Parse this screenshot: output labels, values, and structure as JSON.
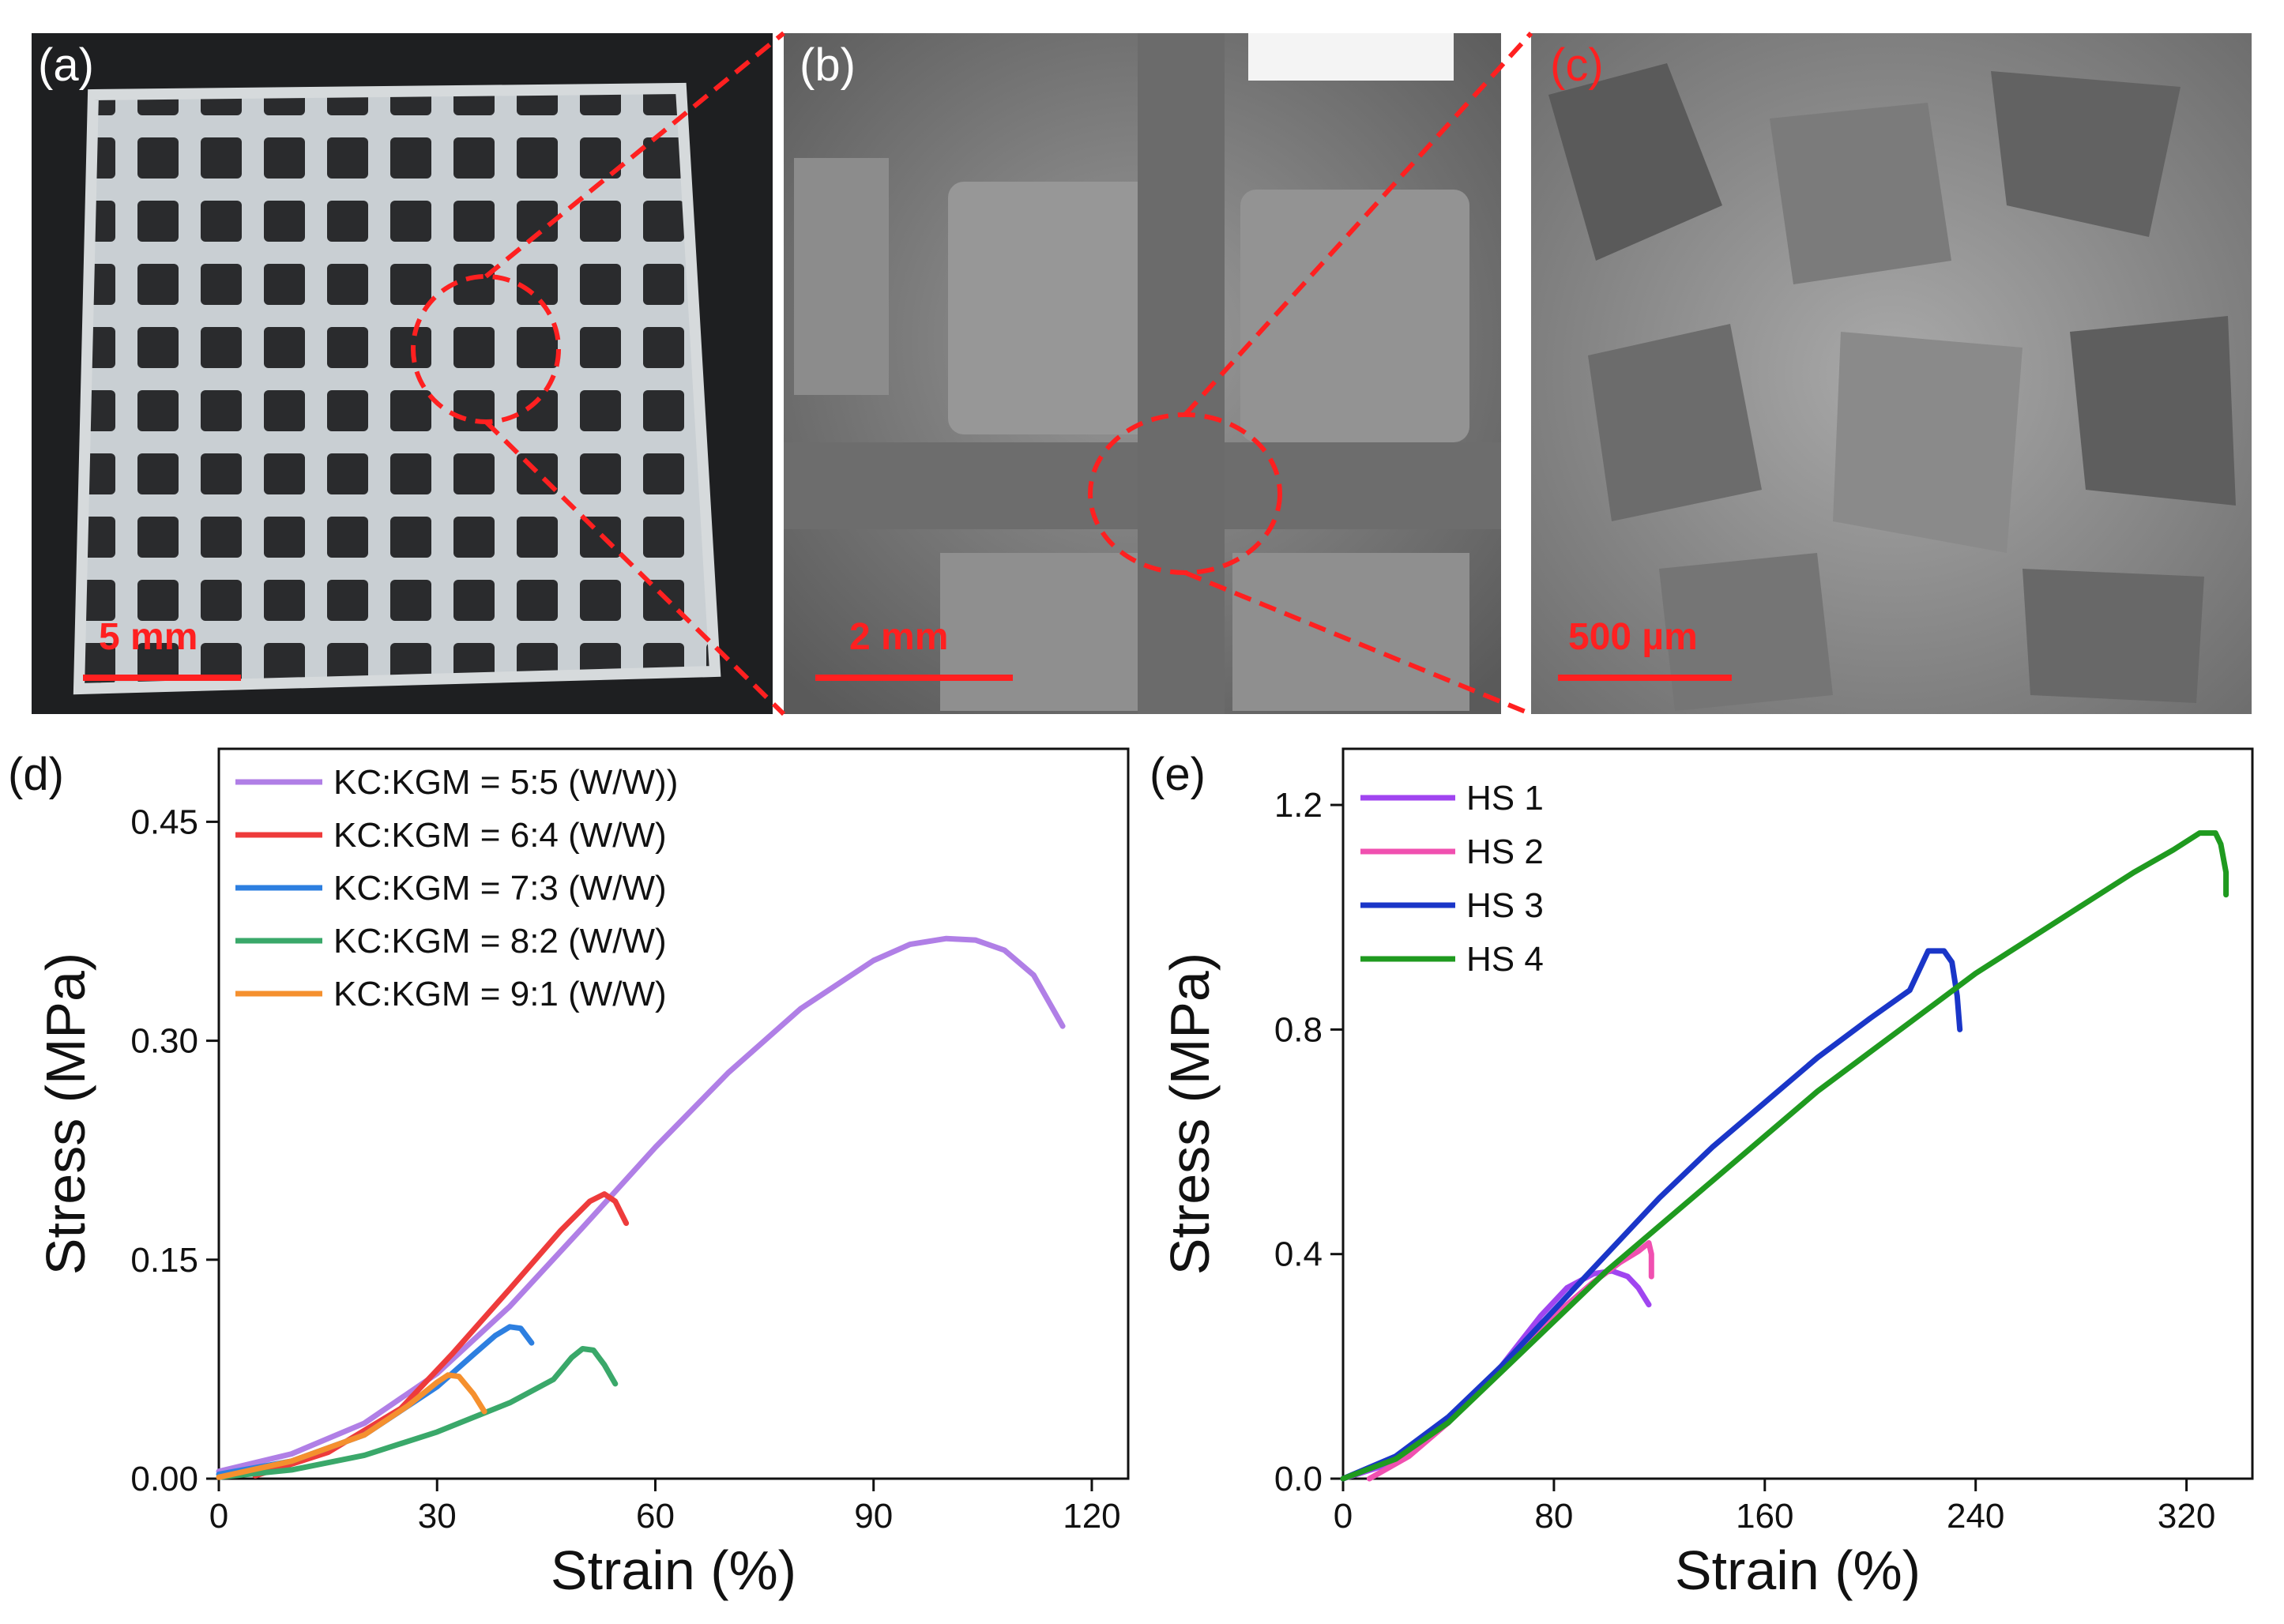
{
  "panels": {
    "a": {
      "letter": "(a)",
      "scale_label": "5 mm"
    },
    "b": {
      "letter": "(b)",
      "scale_label": "2 mm"
    },
    "c": {
      "letter": "(c)",
      "scale_label": "500 µm"
    },
    "d": {
      "letter": "(d)"
    },
    "e": {
      "letter": "(e)"
    }
  },
  "colors": {
    "annotation_red": "#ff2020",
    "series_5_5": "#b07fe6",
    "series_6_4": "#ee3b3b",
    "series_7_3": "#2d7fe0",
    "series_8_2": "#3aa86a",
    "series_9_1": "#f5902e",
    "hs1": "#a045f0",
    "hs2": "#f050b0",
    "hs3": "#1a36c8",
    "hs4": "#1f9a1f"
  },
  "chart_data": [
    {
      "panel": "d",
      "type": "line",
      "xlabel": "Strain (%)",
      "ylabel": "Stress (MPa)",
      "xlim": [
        0,
        125
      ],
      "ylim": [
        0,
        0.5
      ],
      "xticks": [
        0,
        30,
        60,
        90,
        120
      ],
      "yticks": [
        0.0,
        0.15,
        0.3,
        0.45
      ],
      "xtick_labels": [
        "0",
        "30",
        "60",
        "90",
        "120"
      ],
      "ytick_labels": [
        "0.00",
        "0.15",
        "0.30",
        "0.45"
      ],
      "legend_position": "top-left",
      "grid": false,
      "series": [
        {
          "name": "KC:KGM = 5:5 (W/W))",
          "color": "#b07fe6",
          "points": [
            [
              0,
              0.005
            ],
            [
              10,
              0.017
            ],
            [
              20,
              0.038
            ],
            [
              30,
              0.072
            ],
            [
              40,
              0.118
            ],
            [
              50,
              0.172
            ],
            [
              60,
              0.227
            ],
            [
              70,
              0.278
            ],
            [
              80,
              0.322
            ],
            [
              90,
              0.355
            ],
            [
              95,
              0.366
            ],
            [
              100,
              0.37
            ],
            [
              104,
              0.369
            ],
            [
              108,
              0.362
            ],
            [
              112,
              0.345
            ],
            [
              116,
              0.31
            ]
          ]
        },
        {
          "name": "KC:KGM = 6:4 (W/W)",
          "color": "#ee3b3b",
          "points": [
            [
              5,
              0.002
            ],
            [
              15,
              0.018
            ],
            [
              25,
              0.048
            ],
            [
              32,
              0.085
            ],
            [
              40,
              0.13
            ],
            [
              47,
              0.17
            ],
            [
              51,
              0.19
            ],
            [
              53,
              0.195
            ],
            [
              54.5,
              0.19
            ],
            [
              56,
              0.175
            ]
          ]
        },
        {
          "name": "KC:KGM = 7:3 (W/W)",
          "color": "#2d7fe0",
          "points": [
            [
              0,
              0.003
            ],
            [
              10,
              0.012
            ],
            [
              20,
              0.03
            ],
            [
              30,
              0.063
            ],
            [
              35,
              0.085
            ],
            [
              38,
              0.098
            ],
            [
              40,
              0.104
            ],
            [
              41.5,
              0.103
            ],
            [
              43,
              0.093
            ]
          ]
        },
        {
          "name": "KC:KGM = 8:2 (W/W)",
          "color": "#3aa86a",
          "points": [
            [
              0,
              0.001
            ],
            [
              10,
              0.006
            ],
            [
              20,
              0.016
            ],
            [
              30,
              0.032
            ],
            [
              40,
              0.052
            ],
            [
              46,
              0.068
            ],
            [
              48.5,
              0.083
            ],
            [
              50,
              0.089
            ],
            [
              51.5,
              0.088
            ],
            [
              53,
              0.078
            ],
            [
              54.5,
              0.065
            ]
          ]
        },
        {
          "name": "KC:KGM = 9:1 (W/W)",
          "color": "#f5902e",
          "points": [
            [
              0,
              0.001
            ],
            [
              10,
              0.012
            ],
            [
              20,
              0.03
            ],
            [
              26,
              0.05
            ],
            [
              30,
              0.066
            ],
            [
              31.5,
              0.071
            ],
            [
              33,
              0.07
            ],
            [
              35,
              0.058
            ],
            [
              36.5,
              0.046
            ]
          ]
        }
      ]
    },
    {
      "panel": "e",
      "type": "line",
      "xlabel": "Strain (%)",
      "ylabel": "Stress (MPa)",
      "xlim": [
        0,
        345
      ],
      "ylim": [
        0,
        1.3
      ],
      "xticks": [
        0,
        80,
        160,
        240,
        320
      ],
      "yticks": [
        0.0,
        0.4,
        0.8,
        1.2
      ],
      "xtick_labels": [
        "0",
        "80",
        "160",
        "240",
        "320"
      ],
      "ytick_labels": [
        "0.0",
        "0.4",
        "0.8",
        "1.2"
      ],
      "legend_position": "top-left",
      "grid": false,
      "series": [
        {
          "name": "HS 1",
          "color": "#a045f0",
          "points": [
            [
              0,
              0
            ],
            [
              20,
              0.03
            ],
            [
              40,
              0.1
            ],
            [
              60,
              0.2
            ],
            [
              75,
              0.29
            ],
            [
              85,
              0.34
            ],
            [
              95,
              0.365
            ],
            [
              102,
              0.37
            ],
            [
              108,
              0.36
            ],
            [
              112,
              0.34
            ],
            [
              116,
              0.31
            ]
          ]
        },
        {
          "name": "HS 2",
          "color": "#f050b0",
          "points": [
            [
              10,
              0
            ],
            [
              25,
              0.04
            ],
            [
              40,
              0.1
            ],
            [
              60,
              0.2
            ],
            [
              80,
              0.29
            ],
            [
              95,
              0.35
            ],
            [
              105,
              0.385
            ],
            [
              112,
              0.405
            ],
            [
              116,
              0.42
            ],
            [
              117,
              0.4
            ],
            [
              117,
              0.36
            ]
          ]
        },
        {
          "name": "HS 3",
          "color": "#1a36c8",
          "points": [
            [
              0,
              0
            ],
            [
              20,
              0.04
            ],
            [
              40,
              0.11
            ],
            [
              60,
              0.2
            ],
            [
              80,
              0.3
            ],
            [
              100,
              0.4
            ],
            [
              120,
              0.5
            ],
            [
              140,
              0.59
            ],
            [
              160,
              0.67
            ],
            [
              180,
              0.75
            ],
            [
              200,
              0.82
            ],
            [
              215,
              0.87
            ],
            [
              222,
              0.94
            ],
            [
              228,
              0.94
            ],
            [
              231,
              0.92
            ],
            [
              233,
              0.86
            ],
            [
              234,
              0.8
            ]
          ]
        },
        {
          "name": "HS 4",
          "color": "#1f9a1f",
          "points": [
            [
              0,
              0
            ],
            [
              20,
              0.035
            ],
            [
              40,
              0.1
            ],
            [
              60,
              0.19
            ],
            [
              80,
              0.28
            ],
            [
              100,
              0.37
            ],
            [
              120,
              0.45
            ],
            [
              140,
              0.53
            ],
            [
              160,
              0.61
            ],
            [
              180,
              0.69
            ],
            [
              200,
              0.76
            ],
            [
              220,
              0.83
            ],
            [
              240,
              0.9
            ],
            [
              260,
              0.96
            ],
            [
              280,
              1.02
            ],
            [
              300,
              1.08
            ],
            [
              315,
              1.12
            ],
            [
              325,
              1.15
            ],
            [
              331,
              1.15
            ],
            [
              333,
              1.13
            ],
            [
              335,
              1.08
            ],
            [
              335,
              1.04
            ]
          ]
        }
      ]
    }
  ]
}
